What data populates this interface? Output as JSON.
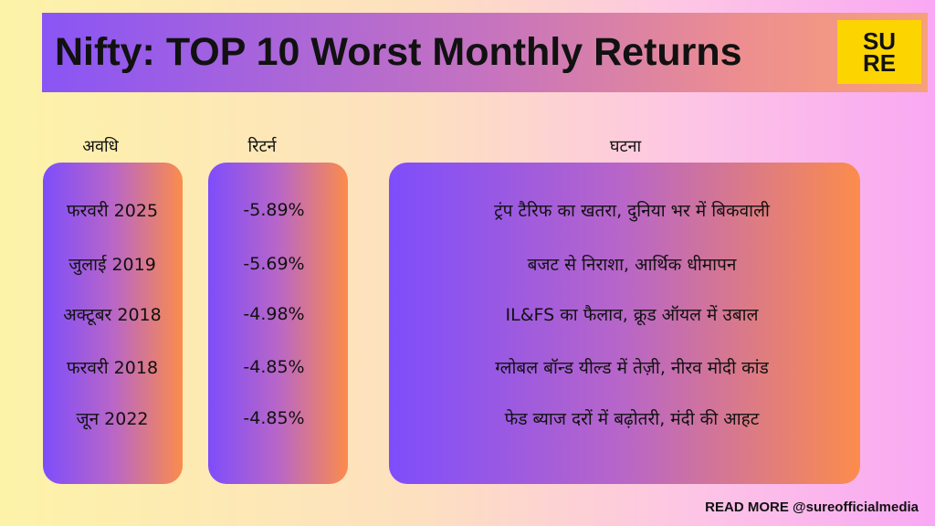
{
  "header": {
    "title": "Nifty: TOP 10 Worst Monthly Returns",
    "logo": [
      "SU",
      "RE"
    ]
  },
  "table": {
    "columns": [
      "अवधि",
      "रिटर्न",
      "घटना"
    ],
    "rows": [
      [
        "फरवरी 2025",
        "-5.89%",
        "ट्रंप टैरिफ का खतरा, दुनिया भर में बिकवाली"
      ],
      [
        "जुलाई 2019",
        "-5.69%",
        "बजट से निराशा, आर्थिक धीमापन"
      ],
      [
        "अक्टूबर 2018",
        "-4.98%",
        "IL&FS का फैलाव, क्रूड ऑयल में उबाल"
      ],
      [
        "फरवरी 2018",
        "-4.85%",
        "ग्लोबल बॉन्ड यील्ड में तेज़ी, नीरव मोदी कांड"
      ],
      [
        "जून 2022",
        "-4.85%",
        "फेड ब्याज दरों में बढ़ोतरी, मंदी की आहट"
      ]
    ]
  },
  "footer": "READ MORE @sureofficialmedia"
}
